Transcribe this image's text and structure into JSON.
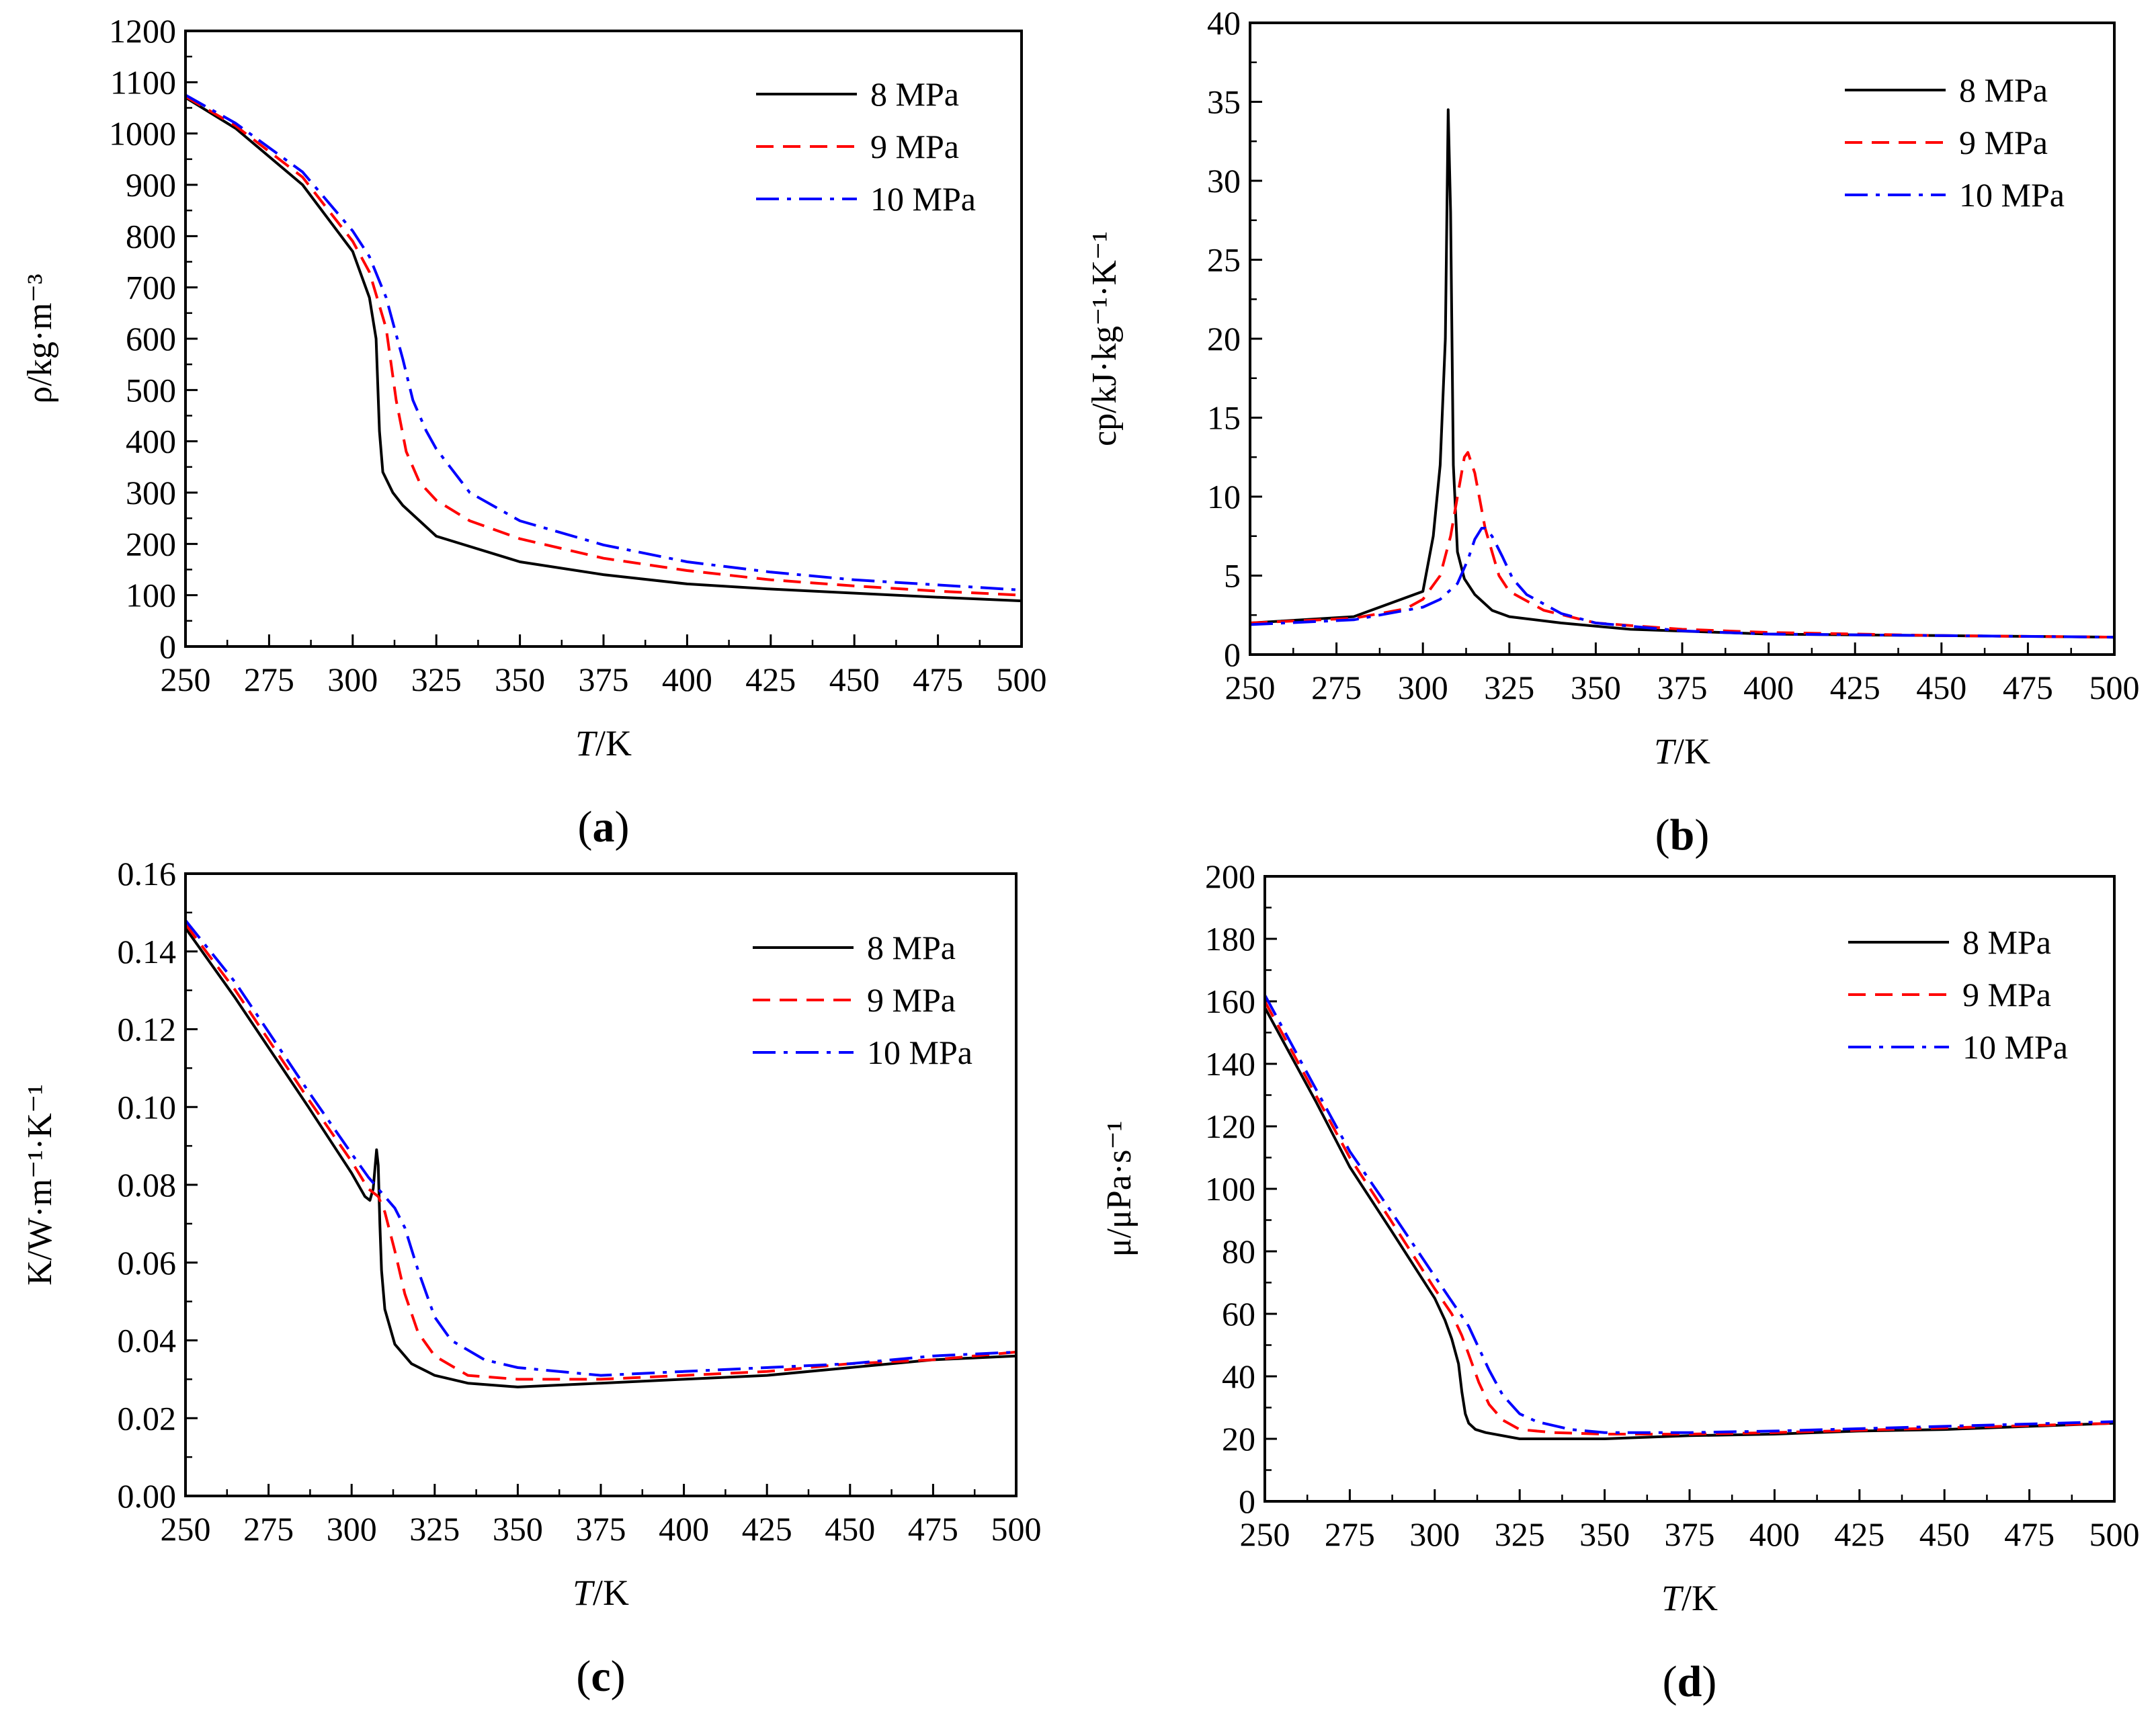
{
  "colors": {
    "p8": "#000000",
    "p9": "#ff0000",
    "p10": "#0000ff"
  },
  "chart_data": [
    {
      "type": "line",
      "panel_label": "a",
      "xlabel": {
        "var": "T",
        "unit": "/K"
      },
      "ylabel": "ρ/kg·m⁻³",
      "xlim": [
        250,
        500
      ],
      "ylim": [
        0,
        1200
      ],
      "xticks": [
        "250",
        "275",
        "300",
        "325",
        "350",
        "375",
        "400",
        "425",
        "450",
        "475",
        "500"
      ],
      "yticks": [
        "0",
        "100",
        "200",
        "300",
        "400",
        "500",
        "600",
        "700",
        "800",
        "900",
        "1000",
        "1100",
        "1200"
      ],
      "legend_position": "top-right",
      "series": [
        {
          "name": "8 MPa",
          "style": "solid",
          "x": [
            250,
            265,
            285,
            300,
            305,
            307,
            308,
            309,
            312,
            315,
            325,
            350,
            375,
            400,
            425,
            450,
            475,
            500
          ],
          "y": [
            1070,
            1010,
            900,
            770,
            680,
            600,
            420,
            340,
            300,
            275,
            215,
            165,
            140,
            122,
            112,
            104,
            96,
            89
          ]
        },
        {
          "name": "9 MPa",
          "style": "dashed",
          "x": [
            250,
            265,
            285,
            300,
            305,
            310,
            313,
            316,
            320,
            325,
            335,
            350,
            375,
            400,
            425,
            450,
            475,
            500
          ],
          "y": [
            1072,
            1015,
            915,
            790,
            730,
            620,
            480,
            380,
            320,
            285,
            245,
            210,
            172,
            148,
            130,
            118,
            108,
            100
          ]
        },
        {
          "name": "10 MPa",
          "style": "dashdot",
          "x": [
            250,
            265,
            285,
            300,
            305,
            310,
            315,
            318,
            322,
            325,
            335,
            350,
            375,
            400,
            425,
            450,
            475,
            500
          ],
          "y": [
            1075,
            1020,
            925,
            810,
            760,
            680,
            560,
            480,
            420,
            385,
            300,
            245,
            198,
            165,
            145,
            130,
            120,
            110
          ]
        }
      ]
    },
    {
      "type": "line",
      "panel_label": "b",
      "xlabel": {
        "var": "T",
        "unit": "/K"
      },
      "ylabel": "cp/kJ·kg⁻¹·K⁻¹",
      "xlim": [
        250,
        500
      ],
      "ylim": [
        0,
        40
      ],
      "xticks": [
        "250",
        "275",
        "300",
        "325",
        "350",
        "375",
        "400",
        "425",
        "450",
        "475",
        "500"
      ],
      "yticks": [
        "0",
        "5",
        "10",
        "15",
        "20",
        "25",
        "30",
        "35",
        "40"
      ],
      "legend_position": "top-right",
      "series": [
        {
          "name": "8 MPa",
          "style": "solid",
          "x": [
            250,
            280,
            300,
            303,
            305,
            306.5,
            307.3,
            308,
            308.8,
            310,
            312,
            315,
            320,
            325,
            340,
            360,
            400,
            450,
            500
          ],
          "y": [
            2.0,
            2.4,
            4.0,
            7.5,
            12,
            20,
            34.5,
            28,
            12,
            6.5,
            4.8,
            3.8,
            2.8,
            2.4,
            2.0,
            1.6,
            1.3,
            1.2,
            1.1
          ]
        },
        {
          "name": "9 MPa",
          "style": "dashed",
          "x": [
            250,
            280,
            295,
            300,
            305,
            308,
            310,
            312,
            313,
            315,
            318,
            322,
            325,
            335,
            350,
            375,
            400,
            450,
            500
          ],
          "y": [
            2.0,
            2.3,
            2.9,
            3.5,
            5,
            7.5,
            10,
            12.5,
            12.8,
            11.5,
            8.0,
            5.0,
            4.0,
            2.8,
            2.0,
            1.6,
            1.4,
            1.2,
            1.1
          ]
        },
        {
          "name": "10 MPa",
          "style": "dashdot",
          "x": [
            250,
            280,
            300,
            305,
            310,
            313,
            315,
            317,
            318,
            320,
            323,
            326,
            330,
            340,
            350,
            375,
            400,
            450,
            500
          ],
          "y": [
            1.9,
            2.2,
            3.0,
            3.5,
            4.5,
            6,
            7.3,
            8.0,
            8.0,
            7.5,
            6.2,
            4.8,
            3.8,
            2.6,
            2.0,
            1.5,
            1.3,
            1.2,
            1.1
          ]
        }
      ]
    },
    {
      "type": "line",
      "panel_label": "c",
      "xlabel": {
        "var": "T",
        "unit": "/K"
      },
      "ylabel": "K/W·m⁻¹·K⁻¹",
      "xlim": [
        250,
        500
      ],
      "ylim": [
        0,
        0.16
      ],
      "xticks": [
        "250",
        "275",
        "300",
        "325",
        "350",
        "375",
        "400",
        "425",
        "450",
        "475",
        "500"
      ],
      "yticks": [
        "0.00",
        "0.02",
        "0.04",
        "0.06",
        "0.08",
        "0.10",
        "0.12",
        "0.14",
        "0.16"
      ],
      "legend_position": "top-right",
      "series": [
        {
          "name": "8 MPa",
          "style": "solid",
          "x": [
            250,
            265,
            287,
            300,
            304,
            305.5,
            306.5,
            307.5,
            308,
            308.5,
            309,
            310,
            313,
            318,
            325,
            335,
            350,
            375,
            400,
            425,
            450,
            475,
            500
          ],
          "y": [
            0.146,
            0.128,
            0.1,
            0.083,
            0.077,
            0.076,
            0.079,
            0.089,
            0.085,
            0.07,
            0.058,
            0.048,
            0.039,
            0.034,
            0.031,
            0.029,
            0.028,
            0.029,
            0.03,
            0.031,
            0.033,
            0.035,
            0.036
          ]
        },
        {
          "name": "9 MPa",
          "style": "dashed",
          "x": [
            250,
            265,
            287,
            300,
            305,
            308,
            310,
            313,
            316,
            320,
            325,
            335,
            350,
            375,
            400,
            425,
            450,
            475,
            500
          ],
          "y": [
            0.147,
            0.13,
            0.102,
            0.086,
            0.079,
            0.077,
            0.073,
            0.063,
            0.052,
            0.042,
            0.036,
            0.031,
            0.03,
            0.03,
            0.031,
            0.032,
            0.034,
            0.035,
            0.037
          ]
        },
        {
          "name": "10 MPa",
          "style": "dashdot",
          "x": [
            250,
            265,
            287,
            300,
            305,
            310,
            313,
            316,
            320,
            325,
            330,
            340,
            350,
            375,
            400,
            425,
            450,
            475,
            500
          ],
          "y": [
            0.148,
            0.132,
            0.104,
            0.088,
            0.082,
            0.077,
            0.074,
            0.069,
            0.058,
            0.046,
            0.04,
            0.035,
            0.033,
            0.031,
            0.032,
            0.033,
            0.034,
            0.036,
            0.037
          ]
        }
      ]
    },
    {
      "type": "line",
      "panel_label": "d",
      "xlabel": {
        "var": "T",
        "unit": "/K"
      },
      "ylabel": "μ/μPa·s⁻¹",
      "xlim": [
        250,
        500
      ],
      "ylim": [
        0,
        200
      ],
      "xticks": [
        "250",
        "275",
        "300",
        "325",
        "350",
        "375",
        "400",
        "425",
        "450",
        "475",
        "500"
      ],
      "yticks": [
        "0",
        "20",
        "40",
        "60",
        "80",
        "100",
        "120",
        "140",
        "160",
        "180",
        "200"
      ],
      "legend_position": "top-right",
      "series": [
        {
          "name": "8 MPa",
          "style": "solid",
          "x": [
            250,
            265,
            275,
            287,
            300,
            303,
            305,
            307,
            308,
            309,
            310,
            312,
            315,
            325,
            350,
            375,
            400,
            425,
            450,
            475,
            500
          ],
          "y": [
            158,
            128,
            107,
            87,
            65,
            58,
            52,
            44,
            35,
            28,
            25,
            23,
            22,
            20,
            20,
            21,
            21.5,
            22.5,
            23,
            24,
            25
          ]
        },
        {
          "name": "9 MPa",
          "style": "dashed",
          "x": [
            250,
            265,
            275,
            287,
            300,
            305,
            308,
            310,
            313,
            316,
            320,
            325,
            335,
            350,
            375,
            400,
            450,
            500
          ],
          "y": [
            160,
            130,
            110,
            90,
            68,
            60,
            53,
            47,
            38,
            31,
            26,
            23,
            22,
            21.5,
            21.5,
            22,
            23.5,
            25
          ]
        },
        {
          "name": "10 MPa",
          "style": "dashdot",
          "x": [
            250,
            265,
            275,
            287,
            300,
            305,
            310,
            313,
            316,
            320,
            325,
            330,
            340,
            350,
            375,
            400,
            450,
            500
          ],
          "y": [
            162,
            132,
            112,
            93,
            72,
            64,
            56,
            49,
            42,
            34,
            28,
            25.5,
            23,
            22,
            22,
            22.5,
            24,
            25.5
          ]
        }
      ]
    }
  ]
}
